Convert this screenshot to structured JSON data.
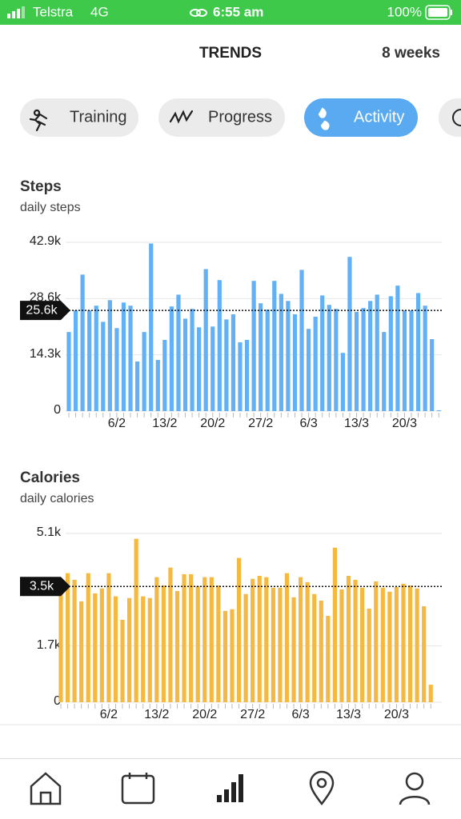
{
  "status_bar": {
    "carrier": "Telstra",
    "network": "4G",
    "time": "6:55 am",
    "battery": "100%"
  },
  "header": {
    "title": "TRENDS",
    "period": "8 weeks"
  },
  "tabs": [
    "Training",
    "Progress",
    "Activity"
  ],
  "active_tab": 2,
  "chart_data": [
    {
      "type": "bar",
      "title": "Steps",
      "subtitle": "daily steps",
      "color": "#62b0f5",
      "categories": [
        null,
        null,
        null,
        null,
        null,
        null,
        null,
        "6/2",
        null,
        null,
        null,
        null,
        null,
        null,
        "13/2",
        null,
        null,
        null,
        null,
        null,
        null,
        "20/2",
        null,
        null,
        null,
        null,
        null,
        null,
        "27/2",
        null,
        null,
        null,
        null,
        null,
        null,
        "6/3",
        null,
        null,
        null,
        null,
        null,
        null,
        "13/3",
        null,
        null,
        null,
        null,
        null,
        null,
        "20/3",
        null,
        null,
        null,
        null,
        null
      ],
      "values": [
        20100,
        25600,
        34700,
        25600,
        26800,
        22700,
        28200,
        21100,
        27600,
        26800,
        12600,
        20100,
        42600,
        13000,
        18100,
        26600,
        29600,
        23500,
        26000,
        21300,
        36100,
        21500,
        33300,
        23300,
        24600,
        17500,
        18100,
        33100,
        27400,
        25800,
        33100,
        29800,
        28000,
        24600,
        35900,
        20900,
        24000,
        29400,
        27000,
        26000,
        14800,
        39200,
        25200,
        26200,
        28000,
        29600,
        20100,
        29200,
        31900,
        25600,
        25600,
        30000,
        26800,
        18300,
        200
      ],
      "ylim": [
        0,
        42900
      ],
      "yticks": [
        0,
        {
          "value": 14300,
          "label": "14.3k"
        },
        {
          "value": 28600,
          "label": "28.6k"
        },
        {
          "value": 42900,
          "label": "42.9k"
        }
      ],
      "grid": true,
      "reference_line": {
        "value": 25600,
        "label": "25.6k"
      }
    },
    {
      "type": "bar",
      "title": "Calories",
      "subtitle": "daily calories",
      "color": "#f5b942",
      "categories": [
        null,
        null,
        null,
        null,
        null,
        null,
        null,
        "6/2",
        null,
        null,
        null,
        null,
        null,
        null,
        "13/2",
        null,
        null,
        null,
        null,
        null,
        null,
        "20/2",
        null,
        null,
        null,
        null,
        null,
        null,
        "27/2",
        null,
        null,
        null,
        null,
        null,
        null,
        "6/3",
        null,
        null,
        null,
        null,
        null,
        null,
        "13/3",
        null,
        null,
        null,
        null,
        null,
        null,
        "20/3",
        null,
        null,
        null,
        null,
        null
      ],
      "values": [
        3390,
        3900,
        3700,
        3050,
        3900,
        3290,
        3440,
        3900,
        3200,
        2490,
        3150,
        4940,
        3200,
        3150,
        3780,
        3530,
        4070,
        3360,
        3870,
        3870,
        3510,
        3780,
        3780,
        3530,
        2760,
        2810,
        4360,
        3270,
        3730,
        3820,
        3780,
        3460,
        3460,
        3900,
        3170,
        3780,
        3630,
        3270,
        3070,
        2610,
        4670,
        3410,
        3820,
        3700,
        3460,
        2830,
        3650,
        3460,
        3340,
        3480,
        3580,
        3530,
        3440,
        2900,
        530
      ],
      "ylim": [
        0,
        5100
      ],
      "yticks": [
        0,
        {
          "value": 1700,
          "label": "1.7k"
        },
        {
          "value": 5100,
          "label": "5.1k"
        }
      ],
      "grid": true,
      "reference_line": {
        "value": 3500,
        "label": "3.5k"
      }
    }
  ]
}
